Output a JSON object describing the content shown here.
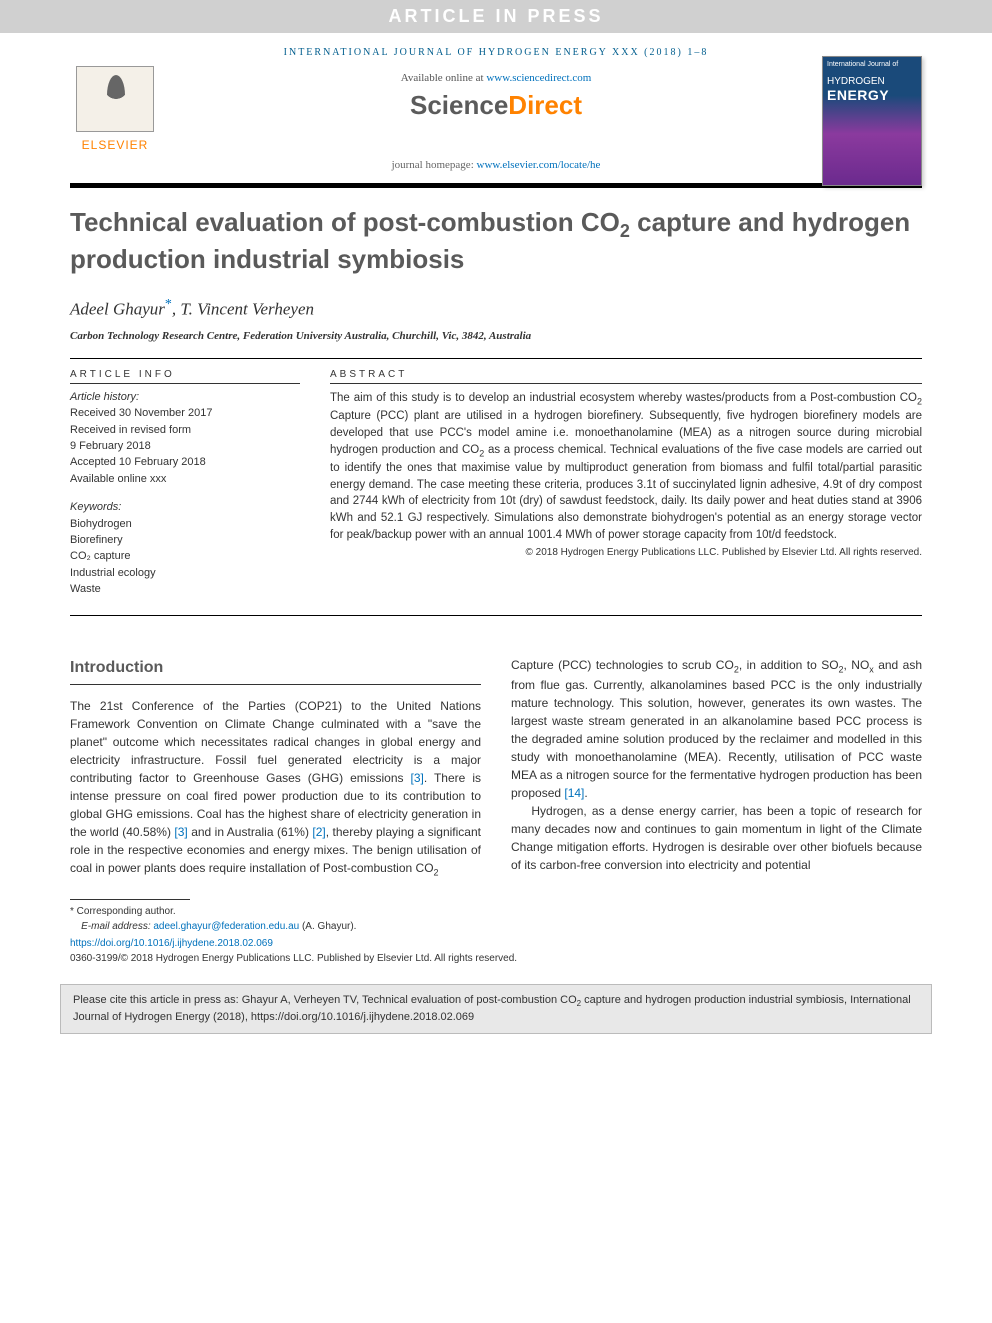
{
  "banner": "ARTICLE IN PRESS",
  "journal_line": "INTERNATIONAL JOURNAL OF HYDROGEN ENERGY XXX (2018) 1–8",
  "header": {
    "available_prefix": "Available online at ",
    "available_link_text": "www.sciencedirect.com",
    "available_link_url": "www.sciencedirect.com",
    "sd_science": "Science",
    "sd_direct": "Direct",
    "homepage_prefix": "journal homepage: ",
    "homepage_link_text": "www.elsevier.com/locate/he",
    "elsevier_word": "ELSEVIER",
    "cover": {
      "small": "International Journal of",
      "line1": "HYDROGEN",
      "line2": "ENERGY"
    }
  },
  "title_html": "Technical evaluation of post-combustion CO<sub>2</sub> capture and hydrogen production industrial symbiosis",
  "authors_html": "Adeel Ghayur<a class='corr' data-name='corresponding-marker' data-interactable='false'>*</a>, T. Vincent Verheyen",
  "affiliation": "Carbon Technology Research Centre, Federation University Australia, Churchill, Vic, 3842, Australia",
  "article_info": {
    "label": "ARTICLE INFO",
    "history_label": "Article history:",
    "history": [
      "Received 30 November 2017",
      "Received in revised form",
      "9 February 2018",
      "Accepted 10 February 2018",
      "Available online xxx"
    ],
    "keywords_label": "Keywords:",
    "keywords": [
      "Biohydrogen",
      "Biorefinery",
      "CO₂ capture",
      "Industrial ecology",
      "Waste"
    ]
  },
  "abstract": {
    "label": "ABSTRACT",
    "text_html": "The aim of this study is to develop an industrial ecosystem whereby wastes/products from a Post-combustion CO<sub>2</sub> Capture (PCC) plant are utilised in a hydrogen biorefinery. Subsequently, five hydrogen biorefinery models are developed that use PCC's model amine i.e. monoethanolamine (MEA) as a nitrogen source during microbial hydrogen production and CO<sub>2</sub> as a process chemical. Technical evaluations of the five case models are carried out to identify the ones that maximise value by multiproduct generation from biomass and fulfil total/partial parasitic energy demand. The case meeting these criteria, produces 3.1t of succinylated lignin adhesive, 4.9t of dry compost and 2744 kWh of electricity from 10t (dry) of sawdust feedstock, daily. Its daily power and heat duties stand at 3906 kWh and 52.1 GJ respectively. Simulations also demonstrate biohydrogen's potential as an energy storage vector for peak/backup power with an annual 1001.4 MWh of power storage capacity from 10t/d feedstock.",
    "copyright": "© 2018 Hydrogen Energy Publications LLC. Published by Elsevier Ltd. All rights reserved."
  },
  "body": {
    "heading": "Introduction",
    "col1_html": "The 21st Conference of the Parties (COP21) to the United Nations Framework Convention on Climate Change culminated with a \"save the planet\" outcome which necessitates radical changes in global energy and electricity infrastructure. Fossil fuel generated electricity is a major contributing factor to Greenhouse Gases (GHG) emissions <a class='ref' data-name='ref-link-3a' data-interactable='true'>[3]</a>. There is intense pressure on coal fired power production due to its contribution to global GHG emissions. Coal has the highest share of electricity generation in the world (40.58%) <a class='ref' data-name='ref-link-3b' data-interactable='true'>[3]</a> and in Australia (61%) <a class='ref' data-name='ref-link-2' data-interactable='true'>[2]</a>, thereby playing a significant role in the respective economies and energy mixes. The benign utilisation of coal in power plants does require installation of Post-combustion CO<sub>2</sub>",
    "col2_html": "Capture (PCC) technologies to scrub CO<sub>2</sub>, in addition to SO<sub>2</sub>, NO<sub>x</sub> and ash from flue gas. Currently, alkanolamines based PCC is the only industrially mature technology. This solution, however, generates its own wastes. The largest waste stream generated in an alkanolamine based PCC process is the degraded amine solution produced by the reclaimer and modelled in this study with monoethanolamine (MEA). Recently, utilisation of PCC waste MEA as a nitrogen source for the fermentative hydrogen production has been proposed <a class='ref' data-name='ref-link-14' data-interactable='true'>[14]</a>.<br>&nbsp;&nbsp;&nbsp;&nbsp;Hydrogen, as a dense energy carrier, has been a topic of research for many decades now and continues to gain momentum in light of the Climate Change mitigation efforts. Hydrogen is desirable over other biofuels because of its carbon-free conversion into electricity and potential"
  },
  "footnotes": {
    "corr_label": "* Corresponding author.",
    "email_prefix": "E-mail address: ",
    "email": "adeel.ghayur@federation.edu.au",
    "email_suffix": " (A. Ghayur).",
    "doi": "https://doi.org/10.1016/j.ijhydene.2018.02.069",
    "issn_line": "0360-3199/© 2018 Hydrogen Energy Publications LLC. Published by Elsevier Ltd. All rights reserved."
  },
  "cite_box_html": "Please cite this article in press as: Ghayur A, Verheyen TV, Technical evaluation of post-combustion CO<sub>2</sub> capture and hydrogen production industrial symbiosis, International Journal of Hydrogen Energy (2018), https://doi.org/10.1016/j.ijhydene.2018.02.069",
  "colors": {
    "link": "#0071bc",
    "orange": "#ff8200",
    "title_gray": "#5a5a5a",
    "banner_bg": "#d0d0d0",
    "journal_blue": "#025e8e",
    "cite_bg": "#e8e8e8"
  }
}
